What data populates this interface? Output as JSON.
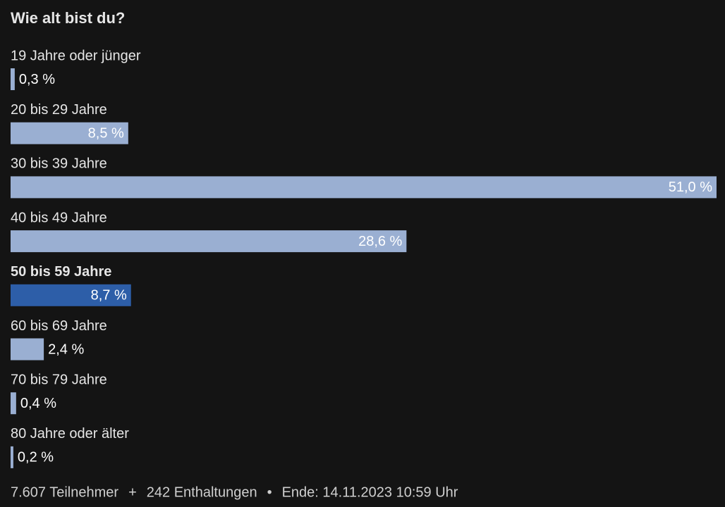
{
  "chart_data": {
    "type": "bar",
    "orientation": "horizontal",
    "title": "Wie alt bist du?",
    "categories": [
      "19 Jahre oder jünger",
      "20 bis 29 Jahre",
      "30 bis 39 Jahre",
      "40 bis 49 Jahre",
      "50 bis 59 Jahre",
      "60 bis 69 Jahre",
      "70 bis 79 Jahre",
      "80 Jahre oder älter"
    ],
    "values": [
      0.3,
      8.5,
      51.0,
      28.6,
      8.7,
      2.4,
      0.4,
      0.2
    ],
    "value_labels": [
      "0,3 %",
      "8,5 %",
      "51,0 %",
      "28,6 %",
      "8,7 %",
      "2,4 %",
      "0,4 %",
      "0,2 %"
    ],
    "color": "#9aafd2",
    "highlight": 4,
    "highlight_color": "#2d5ea8",
    "footer": [
      "7.607 Teilnehmer",
      "+",
      "242 Enthaltungen",
      "•",
      "Ende: 14.11.2023 10:59 Uhr"
    ]
  }
}
